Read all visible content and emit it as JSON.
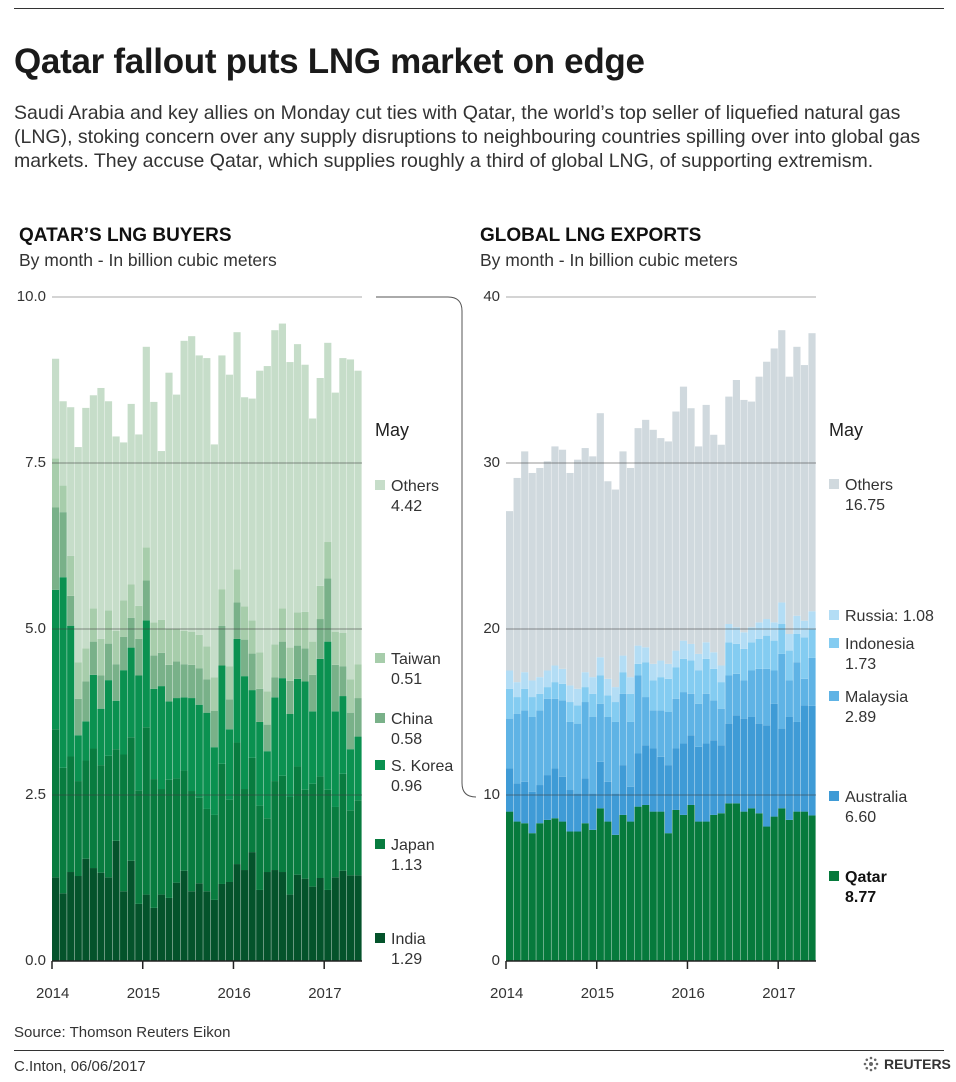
{
  "title": "Qatar fallout puts LNG market on edge",
  "intro": "Saudi Arabia and key allies on Monday cut ties with Qatar, the world’s top seller of liquefied natural gas (LNG), stoking concern over any supply disruptions to neighbouring countries spilling over into global gas markets. They accuse Qatar, which supplies roughly a third of global LNG, of supporting extremism.",
  "source": "Source: Thomson Reuters Eikon",
  "credit": "C.Inton,  06/06/2017",
  "logo_text": "REUTERS",
  "chart_data": [
    {
      "type": "bar",
      "stacked": true,
      "title": "QATAR’S LNG BUYERS",
      "subtitle": "By month - In billion cubic meters",
      "period": "Jan 2014 - May 2017, monthly",
      "x_tick_labels": [
        "2014",
        "2015",
        "2016",
        "2017"
      ],
      "y_tick_labels": [
        "0.0",
        "2.5",
        "5.0",
        "7.5",
        "10.0"
      ],
      "ylim": [
        0,
        10
      ],
      "grid": true,
      "legend_title": "May",
      "legend_placement": "right",
      "series": [
        {
          "name": "India",
          "color": "#04532b",
          "latest": "1.29",
          "values": [
            1.26,
            1.02,
            1.34,
            1.28,
            1.54,
            1.4,
            1.33,
            1.26,
            1.81,
            1.05,
            1.51,
            0.86,
            1.0,
            0.8,
            1.0,
            0.95,
            1.18,
            1.36,
            1.05,
            1.17,
            1.05,
            0.92,
            1.16,
            1.19,
            1.46,
            1.37,
            1.64,
            1.07,
            1.34,
            1.37,
            1.34,
            1.0,
            1.3,
            1.24,
            1.12,
            1.25,
            1.07,
            1.26,
            1.36,
            1.29,
            1.29
          ]
        },
        {
          "name": "Japan",
          "color": "#087c3f",
          "latest": "1.13",
          "values": [
            2.23,
            1.89,
            1.74,
            1.43,
            1.48,
            1.8,
            1.62,
            1.83,
            1.38,
            2.06,
            1.86,
            1.71,
            2.52,
            1.94,
            1.59,
            1.78,
            1.57,
            1.51,
            1.51,
            1.29,
            1.24,
            1.28,
            1.81,
            1.24,
            1.83,
            1.22,
            1.42,
            1.27,
            0.81,
            1.34,
            1.45,
            1.47,
            1.63,
            1.34,
            1.55,
            1.53,
            1.51,
            1.06,
            1.46,
            0.98,
            1.13
          ]
        },
        {
          "name": "S. Korea",
          "color": "#0a9150",
          "latest": "0.96",
          "values": [
            2.1,
            2.87,
            1.97,
            0.69,
            0.59,
            1.11,
            0.85,
            1.14,
            0.73,
            1.27,
            1.35,
            1.73,
            1.61,
            1.36,
            1.55,
            1.18,
            1.21,
            1.1,
            1.4,
            1.4,
            1.45,
            1.02,
            1.48,
            1.06,
            1.56,
            1.7,
            1.02,
            1.26,
            1.01,
            1.26,
            1.47,
            1.25,
            1.32,
            1.63,
            1.09,
            1.77,
            2.23,
            1.44,
            1.17,
            0.92,
            0.96
          ]
        },
        {
          "name": "China",
          "color": "#79b189",
          "latest": "0.58",
          "values": [
            1.24,
            0.98,
            0.45,
            0.55,
            0.6,
            0.5,
            0.5,
            0.55,
            0.55,
            0.5,
            0.45,
            0.55,
            0.6,
            0.5,
            0.5,
            0.55,
            0.55,
            0.5,
            0.5,
            0.55,
            0.5,
            0.55,
            0.6,
            0.45,
            0.55,
            0.55,
            0.55,
            0.5,
            0.4,
            0.3,
            0.55,
            0.5,
            0.5,
            0.5,
            0.55,
            0.6,
            0.95,
            0.7,
            0.45,
            0.55,
            0.58
          ]
        },
        {
          "name": "Taiwan",
          "color": "#a7cdab",
          "latest": "0.51",
          "values": [
            0.74,
            0.4,
            0.6,
            0.55,
            0.5,
            0.5,
            0.55,
            0.5,
            0.5,
            0.55,
            0.5,
            0.5,
            0.5,
            0.5,
            0.5,
            0.55,
            0.5,
            0.5,
            0.5,
            0.5,
            0.5,
            0.5,
            0.55,
            0.5,
            0.5,
            0.5,
            0.5,
            0.55,
            0.5,
            0.5,
            0.5,
            0.5,
            0.5,
            0.55,
            0.5,
            0.5,
            0.55,
            0.5,
            0.5,
            0.5,
            0.51
          ]
        },
        {
          "name": "Others",
          "color": "#c6ddc9",
          "latest": "4.42",
          "values": [
            1.5,
            1.27,
            2.24,
            3.24,
            3.62,
            3.21,
            3.78,
            3.15,
            2.93,
            2.38,
            2.72,
            2.58,
            3.02,
            3.32,
            2.54,
            3.85,
            3.52,
            4.37,
            4.45,
            4.21,
            4.34,
            3.51,
            3.52,
            4.39,
            3.57,
            3.15,
            3.34,
            4.24,
            4.9,
            4.73,
            4.29,
            4.3,
            4.04,
            3.72,
            3.36,
            3.13,
            3.0,
            3.6,
            4.14,
            4.82,
            4.42
          ]
        }
      ]
    },
    {
      "type": "bar",
      "stacked": true,
      "title": "GLOBAL LNG EXPORTS",
      "subtitle": "By month - In billion cubic meters",
      "period": "Jan 2014 - May 2017, monthly",
      "x_tick_labels": [
        "2014",
        "2015",
        "2016",
        "2017"
      ],
      "y_tick_labels": [
        "0",
        "10",
        "20",
        "30",
        "40"
      ],
      "ylim": [
        0,
        40
      ],
      "grid": true,
      "legend_title": "May",
      "legend_placement": "right",
      "series": [
        {
          "name": "Qatar",
          "color": "#067a3c",
          "latest": "8.77",
          "bold": true,
          "values": [
            9.0,
            8.4,
            8.3,
            7.7,
            8.3,
            8.5,
            8.6,
            8.4,
            7.8,
            7.8,
            8.3,
            7.9,
            9.2,
            8.4,
            7.6,
            8.8,
            8.4,
            9.3,
            9.4,
            9.0,
            9.0,
            7.7,
            9.1,
            8.8,
            9.4,
            8.4,
            8.4,
            8.8,
            8.9,
            9.5,
            9.5,
            9.0,
            9.2,
            8.9,
            8.1,
            8.7,
            9.2,
            8.5,
            9.0,
            9.0,
            8.77
          ]
        },
        {
          "name": "Australia",
          "color": "#3f9bd6",
          "latest": "6.60",
          "values": [
            2.6,
            2.3,
            2.5,
            2.5,
            2.3,
            2.7,
            3.0,
            2.7,
            2.5,
            2.3,
            2.7,
            2.2,
            2.8,
            2.4,
            2.5,
            3.0,
            2.1,
            3.2,
            3.6,
            3.8,
            3.3,
            4.1,
            3.7,
            4.3,
            4.2,
            4.5,
            4.7,
            4.5,
            4.1,
            4.8,
            5.3,
            5.6,
            5.5,
            5.4,
            6.1,
            6.8,
            4.8,
            6.2,
            5.4,
            6.4,
            6.6
          ]
        },
        {
          "name": "Malaysia",
          "color": "#5fb3e5",
          "latest": "2.89",
          "values": [
            3.0,
            4.2,
            4.3,
            4.5,
            4.5,
            4.6,
            4.2,
            4.6,
            4.1,
            4.2,
            4.6,
            4.6,
            3.5,
            3.9,
            4.3,
            4.3,
            3.9,
            4.7,
            2.9,
            2.3,
            2.8,
            3.2,
            3.0,
            3.1,
            2.5,
            2.6,
            3.0,
            2.4,
            2.2,
            2.9,
            2.5,
            2.3,
            2.8,
            3.3,
            3.4,
            2.0,
            4.5,
            2.2,
            3.6,
            1.6,
            2.89
          ]
        },
        {
          "name": "Indonesia",
          "color": "#84ccf1",
          "latest": "1.73",
          "values": [
            1.8,
            1.0,
            1.3,
            1.2,
            1.0,
            0.7,
            1.0,
            1.0,
            1.2,
            1.1,
            0.9,
            1.4,
            1.7,
            1.3,
            1.2,
            1.3,
            1.7,
            0.7,
            2.1,
            1.8,
            2.0,
            2.0,
            1.9,
            2.0,
            2.0,
            2.0,
            2.1,
            1.9,
            1.6,
            2.0,
            1.8,
            1.9,
            1.7,
            1.8,
            2.0,
            1.8,
            1.8,
            1.8,
            1.7,
            2.5,
            1.73
          ]
        },
        {
          "name": "Russia",
          "label": "Russia: 1.08",
          "color": "#b3ddf5",
          "latest": "1.08",
          "values": [
            1.1,
            0.9,
            1.0,
            1.0,
            1.0,
            1.0,
            1.0,
            0.9,
            1.0,
            1.0,
            0.9,
            1.0,
            1.1,
            1.0,
            0.9,
            1.0,
            1.0,
            1.1,
            0.9,
            1.0,
            1.0,
            0.9,
            1.0,
            1.1,
            1.0,
            1.0,
            1.0,
            1.0,
            1.0,
            1.1,
            1.0,
            1.0,
            0.9,
            1.0,
            1.0,
            1.1,
            1.3,
            1.0,
            1.1,
            1.0,
            1.08
          ]
        },
        {
          "name": "Others",
          "color": "#d0d9de",
          "latest": "16.75",
          "values": [
            9.6,
            12.3,
            13.3,
            12.5,
            12.6,
            12.6,
            13.2,
            13.2,
            12.8,
            13.8,
            13.5,
            13.3,
            14.7,
            11.9,
            11.9,
            12.3,
            12.6,
            13.1,
            13.7,
            14.1,
            13.4,
            13.4,
            14.4,
            15.3,
            14.2,
            12.5,
            14.3,
            13.1,
            13.3,
            13.7,
            14.9,
            14.0,
            13.6,
            14.8,
            15.5,
            16.5,
            16.4,
            15.5,
            16.2,
            15.4,
            16.75
          ]
        }
      ]
    }
  ]
}
